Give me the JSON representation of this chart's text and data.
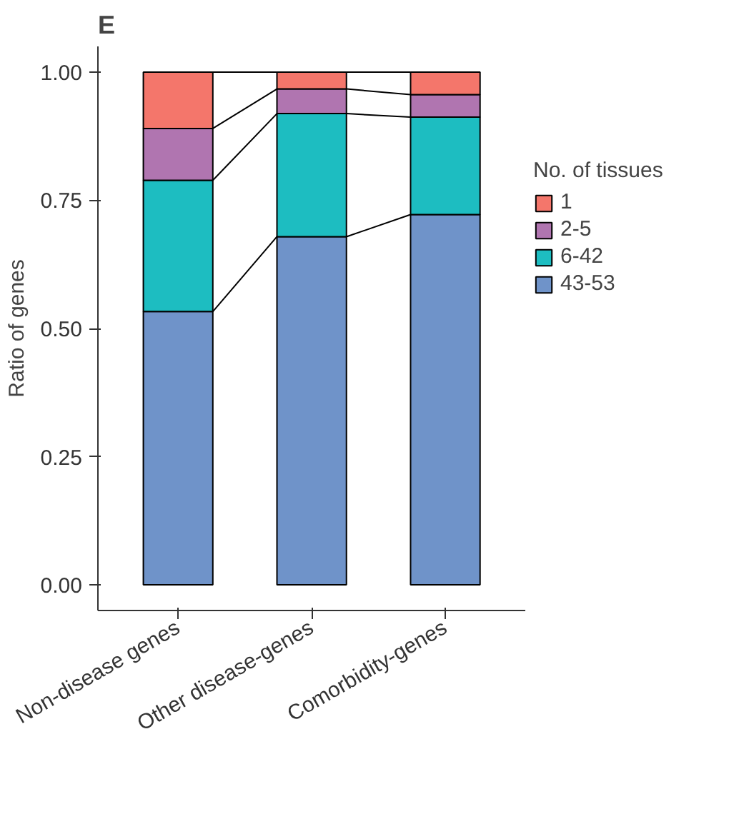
{
  "chart_data": {
    "type": "bar",
    "title": "E",
    "ylabel": "Ratio of genes",
    "legend_title": "No. of tissues",
    "categories": [
      "Non-disease genes",
      "Other disease-genes",
      "Comorbidity-genes"
    ],
    "stacked": true,
    "ylim": [
      -0.05,
      1.05
    ],
    "yticks": [
      {
        "value": 0,
        "label": "0.00"
      },
      {
        "value": 0.25,
        "label": "0.25"
      },
      {
        "value": 0.5,
        "label": "0.50"
      },
      {
        "value": 0.75,
        "label": "0.75"
      },
      {
        "value": 1,
        "label": "1.00"
      }
    ],
    "grid": false,
    "legend": "right",
    "series": [
      {
        "name": "43-53",
        "color": "#6f93c9",
        "values": [
          0.533,
          0.679,
          0.722
        ]
      },
      {
        "name": "6-42",
        "color": "#1dbdc1",
        "values": [
          0.256,
          0.24,
          0.19
        ]
      },
      {
        "name": "2-5",
        "color": "#b075b0",
        "values": [
          0.101,
          0.048,
          0.044
        ]
      },
      {
        "name": "1",
        "color": "#f4766b",
        "values": [
          0.11,
          0.033,
          0.044
        ]
      }
    ]
  }
}
